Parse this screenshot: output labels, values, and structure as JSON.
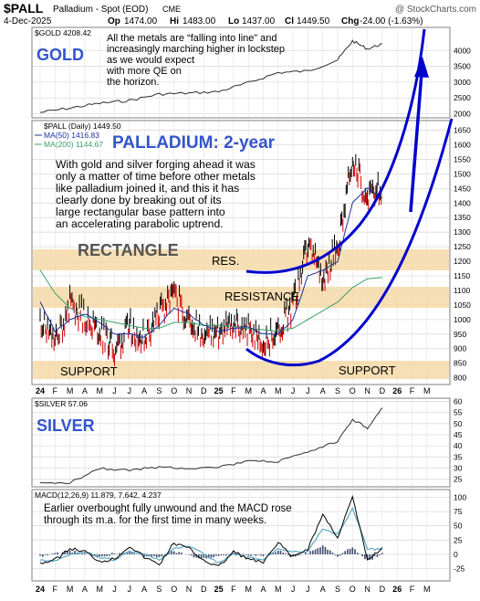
{
  "header": {
    "symbol": "$PALL",
    "name": "Palladium - Spot (EOD)",
    "exchange": "CME",
    "watermark": "@ StockCharts.com",
    "date": "4-Dec-2025",
    "open_label": "Op",
    "open": "1474.00",
    "high_label": "Hi",
    "high": "1483.00",
    "low_label": "Lo",
    "low": "1437.00",
    "close_label": "Cl",
    "close": "1449.50",
    "change_label": "Chg",
    "change": "-24.00 (-1.63%)"
  },
  "colors": {
    "frame": "#7f7f7f",
    "grid": "#d9d9d9",
    "price": "#000000",
    "up_bar": "#000000",
    "down_bar": "#d10000",
    "ma50": "#1f2fa0",
    "ma200": "#3aa068",
    "annotation_blue": "#0000cc",
    "band": "#f6d9a8",
    "panel_label_bg": "#ffffff"
  },
  "gold_panel": {
    "legend": "$GOLD 4208.42",
    "label": "GOLD",
    "note": [
      "All the metals are “falling into line” and",
      "increasingly marching higher in lockstep",
      "as we would expect",
      "with more QE on",
      "the horizon."
    ]
  },
  "palladium_panel": {
    "legend_main": "$PALL (Daily) 1449.50",
    "legend_ma50": "MA(50) 1416.83",
    "legend_ma200": "MA(200) 1144.67",
    "title": "PALLADIUM: 2-year",
    "note": [
      "With gold and silver forging ahead it was",
      "only a matter of time before other metals",
      "like palladium joined it, and this it has",
      "clearly done by breaking out of its",
      "large rectangular base pattern into",
      "an accelerating parabolic uptrend."
    ],
    "label_rectangle": "RECTANGLE",
    "label_res": "RES.",
    "label_resistance": "RESISTANCE",
    "label_support_left": "SUPPORT",
    "label_support_right": "SUPPORT"
  },
  "silver_panel": {
    "legend": "$SILVER 57.06",
    "label": "SILVER"
  },
  "macd_panel": {
    "legend": "MACD(12,26,9) 11.879, 7.642, 4.237",
    "note": [
      "Earlier overbought fully unwound and the MACD rose",
      "through its  m.a. for the first time in many weeks."
    ]
  },
  "chart_data": [
    {
      "type": "line",
      "title": "$GOLD",
      "series": [
        {
          "name": "$GOLD",
          "x": [
            "2024-01",
            "2024-03",
            "2024-05",
            "2024-07",
            "2024-09",
            "2024-11",
            "2025-01",
            "2025-03",
            "2025-05",
            "2025-07",
            "2025-09",
            "2025-10",
            "2025-11",
            "2025-12"
          ],
          "values": [
            2040,
            2180,
            2330,
            2420,
            2620,
            2650,
            2700,
            2980,
            3300,
            3350,
            3700,
            4300,
            4050,
            4208
          ]
        }
      ],
      "y_ticks": [
        2000,
        2500,
        3000,
        3500,
        4000
      ],
      "ylim": [
        1900,
        4700
      ]
    },
    {
      "type": "bar",
      "title": "$PALL (Daily)",
      "x_labels": [
        "24",
        "F",
        "M",
        "A",
        "M",
        "J",
        "J",
        "A",
        "S",
        "O",
        "N",
        "D",
        "25",
        "F",
        "M",
        "A",
        "M",
        "J",
        "J",
        "A",
        "S",
        "O",
        "N",
        "D",
        "26",
        "F",
        "M"
      ],
      "series": [
        {
          "name": "$PALL (Daily)",
          "x": [
            "2024-01",
            "2024-02",
            "2024-03",
            "2024-04",
            "2024-05",
            "2024-06",
            "2024-07",
            "2024-08",
            "2024-09",
            "2024-10",
            "2024-11",
            "2024-12",
            "2025-01",
            "2025-02",
            "2025-03",
            "2025-04",
            "2025-05",
            "2025-06",
            "2025-07",
            "2025-08",
            "2025-09",
            "2025-10",
            "2025-11",
            "2025-12"
          ],
          "values": [
            1000,
            920,
            1050,
            1010,
            960,
            900,
            970,
            940,
            1020,
            1080,
            1000,
            960,
            950,
            990,
            960,
            920,
            960,
            1050,
            1250,
            1150,
            1250,
            1550,
            1420,
            1449.5
          ]
        },
        {
          "name": "MA(50)",
          "values": [
            1060,
            960,
            1000,
            1020,
            990,
            950,
            950,
            940,
            980,
            1040,
            1020,
            980,
            960,
            970,
            975,
            950,
            950,
            1000,
            1150,
            1170,
            1200,
            1400,
            1450,
            1416.83
          ]
        },
        {
          "name": "MA(200)",
          "values": [
            1170,
            1090,
            1040,
            1010,
            1000,
            990,
            980,
            970,
            970,
            990,
            990,
            980,
            980,
            975,
            970,
            965,
            960,
            970,
            1000,
            1030,
            1060,
            1110,
            1140,
            1144.67
          ]
        }
      ],
      "y_ticks": [
        800,
        850,
        900,
        950,
        1000,
        1050,
        1100,
        1150,
        1200,
        1250,
        1300,
        1350,
        1400,
        1450,
        1500,
        1550,
        1600,
        1650
      ],
      "ylim": [
        780,
        1680
      ]
    },
    {
      "type": "line",
      "title": "$SILVER",
      "series": [
        {
          "name": "$SILVER",
          "x": [
            "2024-01",
            "2024-03",
            "2024-05",
            "2024-07",
            "2024-09",
            "2024-11",
            "2025-01",
            "2025-03",
            "2025-05",
            "2025-07",
            "2025-09",
            "2025-10",
            "2025-11",
            "2025-12"
          ],
          "values": [
            23,
            23.5,
            30,
            29,
            30.5,
            30,
            30.5,
            33,
            33,
            37,
            42,
            52,
            48,
            57.06
          ]
        }
      ],
      "y_ticks": [
        25,
        30,
        35,
        40,
        45,
        50,
        55,
        60
      ],
      "ylim": [
        22,
        61
      ]
    },
    {
      "type": "line",
      "title": "MACD(12,26,9)",
      "series": [
        {
          "name": "MACD",
          "values": [
            -15,
            -10,
            10,
            5,
            -12,
            -8,
            15,
            -5,
            -18,
            20,
            10,
            -10,
            -22,
            5,
            -8,
            -15,
            20,
            -5,
            10,
            70,
            30,
            100,
            -10,
            11.879
          ]
        },
        {
          "name": "signal",
          "values": [
            -10,
            -12,
            0,
            5,
            -5,
            -10,
            5,
            0,
            -10,
            10,
            15,
            0,
            -15,
            0,
            -5,
            -10,
            10,
            5,
            5,
            45,
            35,
            80,
            10,
            7.642
          ]
        }
      ],
      "y_ticks": [
        -25,
        0,
        25,
        50,
        75,
        100
      ],
      "ylim": [
        -45,
        112
      ]
    }
  ]
}
